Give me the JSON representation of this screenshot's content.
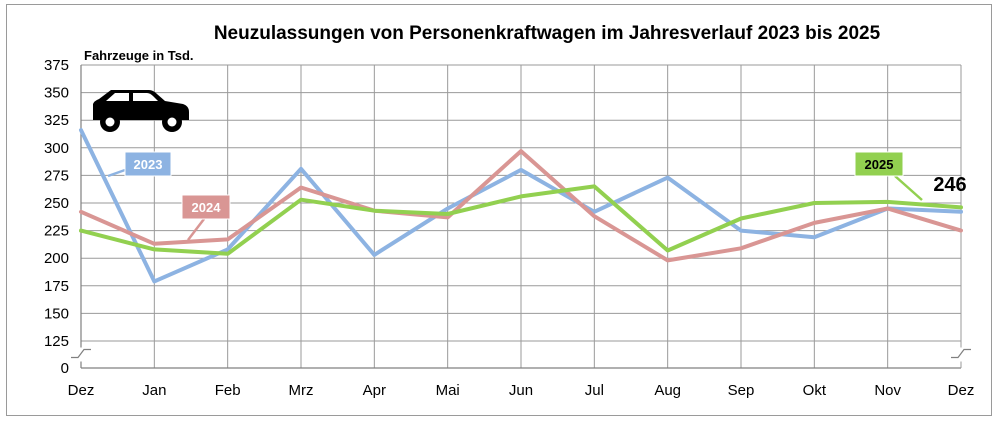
{
  "chart_data": {
    "type": "line",
    "title": "Neuzulassungen von Personenkraftwagen im Jahresverlauf 2023 bis 2025",
    "ylabel": "Fahrzeuge in Tsd.",
    "xlabel": "",
    "categories": [
      "Dez",
      "Jan",
      "Feb",
      "Mrz",
      "Apr",
      "Mai",
      "Jun",
      "Jul",
      "Aug",
      "Sep",
      "Okt",
      "Nov",
      "Dez"
    ],
    "yticks": [
      0,
      125,
      150,
      175,
      200,
      225,
      250,
      275,
      300,
      325,
      350,
      375
    ],
    "ylim": [
      0,
      375
    ],
    "axis_break": "between 0 and 125",
    "grid": true,
    "end_label": "246",
    "icon": "car-icon",
    "series": [
      {
        "name": "2023",
        "color": "#8db3e2",
        "label_bg": "#8db3e2",
        "label_color": "#ffffff",
        "values": [
          316,
          179,
          208,
          281,
          203,
          245,
          280,
          242,
          273,
          225,
          219,
          245,
          242
        ]
      },
      {
        "name": "2024",
        "color": "#d99694",
        "label_bg": "#d99694",
        "label_color": "#ffffff",
        "values": [
          242,
          213,
          217,
          264,
          243,
          237,
          297,
          238,
          198,
          209,
          232,
          245,
          225
        ]
      },
      {
        "name": "2025",
        "color": "#92d050",
        "label_bg": "#92d050",
        "label_color": "#000000",
        "values": [
          225,
          208,
          204,
          253,
          243,
          240,
          256,
          265,
          207,
          236,
          250,
          251,
          246
        ]
      }
    ]
  }
}
